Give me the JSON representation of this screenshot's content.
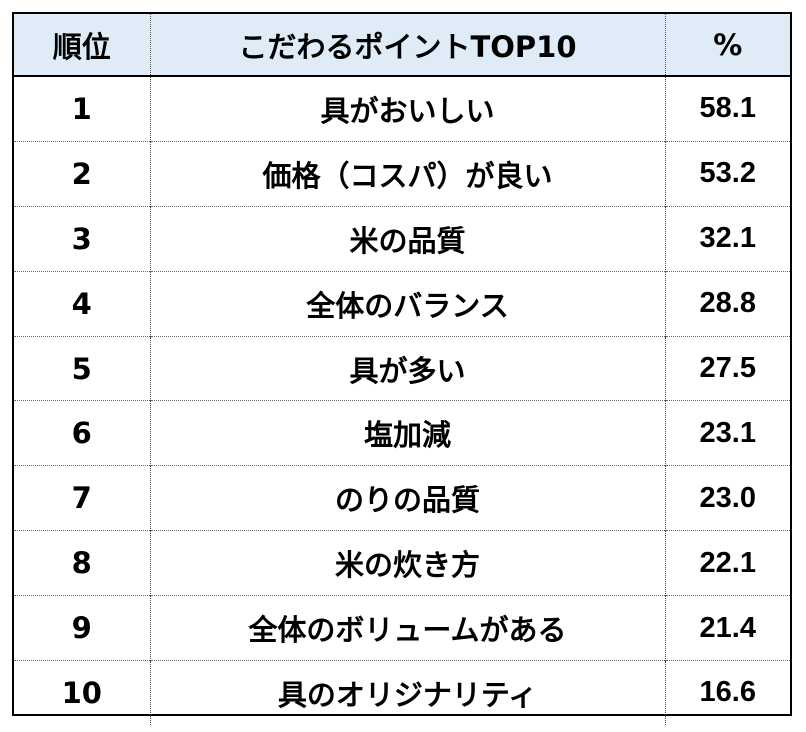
{
  "chart_data": {
    "type": "table",
    "columns": [
      "順位",
      "こだわるポイントTOP10",
      "%"
    ],
    "rows": [
      {
        "rank": "1",
        "point": "具がおいしい",
        "percent": "58.1"
      },
      {
        "rank": "2",
        "point": "価格（コスパ）が良い",
        "percent": "53.2"
      },
      {
        "rank": "3",
        "point": "米の品質",
        "percent": "32.1"
      },
      {
        "rank": "4",
        "point": "全体のバランス",
        "percent": "28.8"
      },
      {
        "rank": "5",
        "point": "具が多い",
        "percent": "27.5"
      },
      {
        "rank": "6",
        "point": "塩加減",
        "percent": "23.1"
      },
      {
        "rank": "7",
        "point": "のりの品質",
        "percent": "23.0"
      },
      {
        "rank": "8",
        "point": "米の炊き方",
        "percent": "22.1"
      },
      {
        "rank": "9",
        "point": "全体のボリュームがある",
        "percent": "21.4"
      },
      {
        "rank": "10",
        "point": "具のオリジナリティ",
        "percent": "16.6"
      }
    ],
    "header_background": "#dfecf7",
    "border_color": "#000000"
  }
}
